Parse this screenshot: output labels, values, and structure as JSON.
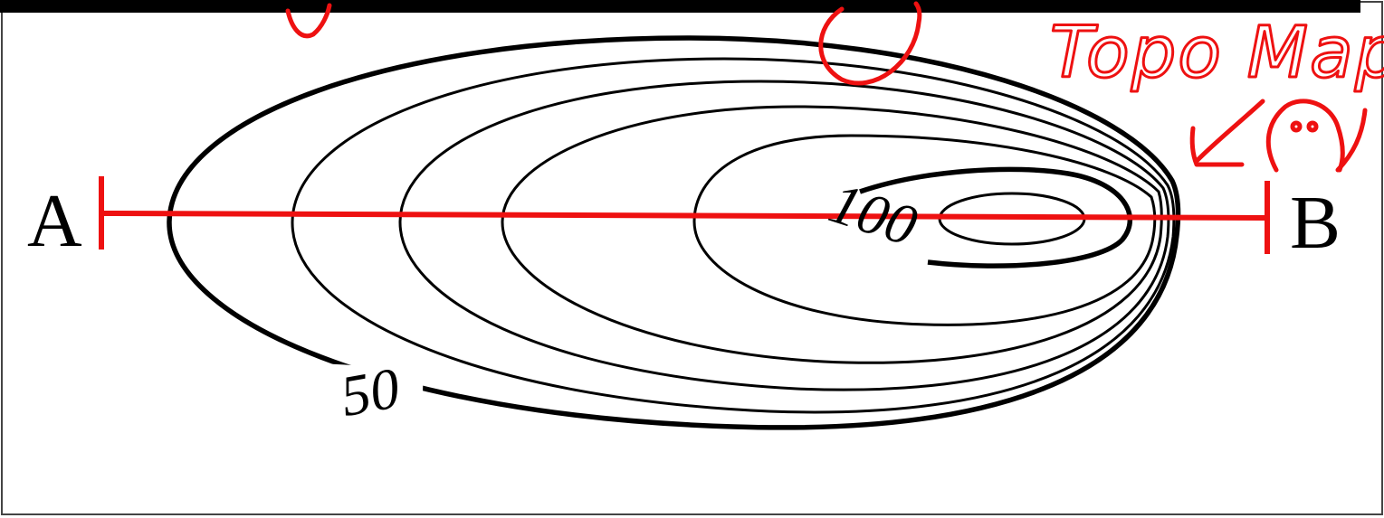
{
  "map": {
    "contour_labels": [
      {
        "text": "100",
        "rotate": 18
      },
      {
        "text": "50",
        "rotate": -10
      }
    ],
    "profile_line": {
      "start_label": "A",
      "end_label": "B",
      "color": "#ee1111"
    }
  },
  "annotations": {
    "handwritten_note": "Topo Map",
    "ink_color": "#ee1111"
  }
}
